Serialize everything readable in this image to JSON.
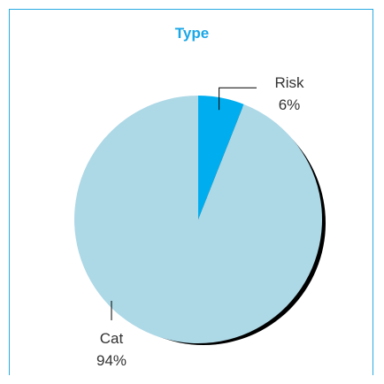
{
  "chart_data": {
    "type": "pie",
    "title": "Type",
    "slices": [
      {
        "label": "Risk",
        "value": 6,
        "display": "6%",
        "color": "#00aeef"
      },
      {
        "label": "Cat",
        "value": 94,
        "display": "94%",
        "color": "#add8e6"
      }
    ],
    "legend": "none",
    "shadow_color": "#000000",
    "title_color": "#1aa7e6",
    "frame_color": "#29abe2"
  }
}
